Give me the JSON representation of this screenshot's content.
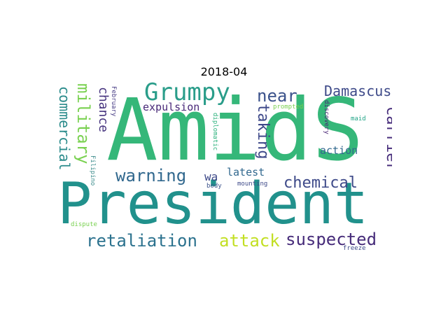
{
  "title": "2018-04",
  "words": {
    "amids": {
      "text": "AmidS",
      "color": "#35b779"
    },
    "president": {
      "text": "President",
      "color": "#21918c"
    },
    "grumpy": {
      "text": "Grumpy",
      "color": "#2a9d8a"
    },
    "near": {
      "text": "near",
      "color": "#3b528b"
    },
    "damascus": {
      "text": "Damascus",
      "color": "#3e4a89"
    },
    "military": {
      "text": "military",
      "color": "#7ad151"
    },
    "commercial": {
      "text": "commercial",
      "color": "#2a8b8b"
    },
    "chance": {
      "text": "chance",
      "color": "#46337e"
    },
    "expulsion": {
      "text": "expulsion",
      "color": "#482878"
    },
    "taking": {
      "text": "taking",
      "color": "#3e4989"
    },
    "carrier": {
      "text": "carrier",
      "color": "#472d7b"
    },
    "action": {
      "text": "action",
      "color": "#31688e"
    },
    "warning": {
      "text": "warning",
      "color": "#31688e"
    },
    "wa": {
      "text": "wa",
      "color": "#3e4a89"
    },
    "latest": {
      "text": "latest",
      "color": "#31688e"
    },
    "chemical": {
      "text": "chemical",
      "color": "#3e4a89"
    },
    "retaliation": {
      "text": "retaliation",
      "color": "#2c728e"
    },
    "attack": {
      "text": "attack",
      "color": "#c2df23"
    },
    "suspected": {
      "text": "suspected",
      "color": "#472c7a"
    },
    "february": {
      "text": "February",
      "color": "#443983"
    },
    "filipino": {
      "text": "Filipino",
      "color": "#3b8b8b"
    },
    "diplomatic": {
      "text": "diplomatic",
      "color": "#2db27d"
    },
    "body": {
      "text": "body",
      "color": "#3b528b"
    },
    "mounting": {
      "text": "mounting",
      "color": "#3e4a89"
    },
    "prompted": {
      "text": "prompted",
      "color": "#7ad151"
    },
    "discovery": {
      "text": "discovery",
      "color": "#482475"
    },
    "maid": {
      "text": "maid",
      "color": "#20a486"
    },
    "dispute": {
      "text": "dispute",
      "color": "#7ad151"
    },
    "freeze": {
      "text": "freeze",
      "color": "#3e4a89"
    }
  }
}
